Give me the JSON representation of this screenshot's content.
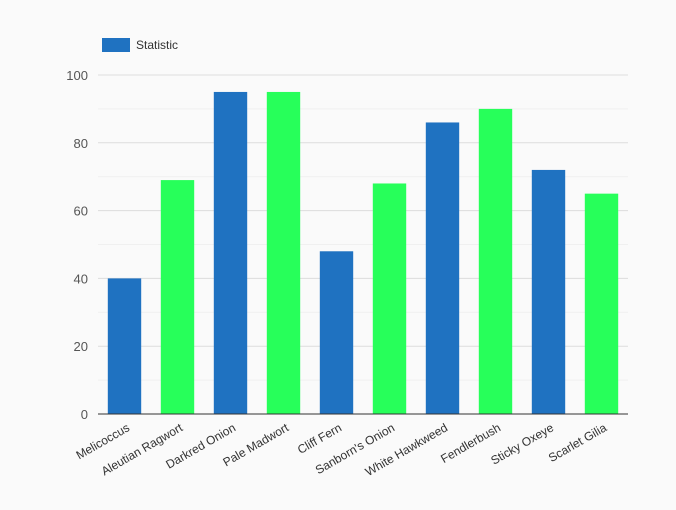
{
  "chart_data": {
    "type": "bar",
    "categories": [
      "Melicoccus",
      "Aleutian Ragwort",
      "Darkred Onion",
      "Pale Madwort",
      "Cliff Fern",
      "Sanborn's Onion",
      "White Hawkweed",
      "Fendlerbush",
      "Sticky Oxeye",
      "Scarlet Gilia"
    ],
    "series": [
      {
        "name": "Statistic",
        "values": [
          40,
          69,
          95,
          95,
          48,
          68,
          86,
          90,
          72,
          65
        ]
      }
    ],
    "bar_colors": [
      "#1f72c1",
      "#27ff5a",
      "#1f72c1",
      "#27ff5a",
      "#1f72c1",
      "#27ff5a",
      "#1f72c1",
      "#27ff5a",
      "#1f72c1",
      "#27ff5a"
    ],
    "legend_color": "#1f72c1",
    "yticks": [
      0,
      20,
      40,
      60,
      80,
      100
    ],
    "ylim": [
      0,
      100
    ],
    "grid": true,
    "legend_position": "top-left",
    "title": "",
    "xlabel": "",
    "ylabel": ""
  }
}
